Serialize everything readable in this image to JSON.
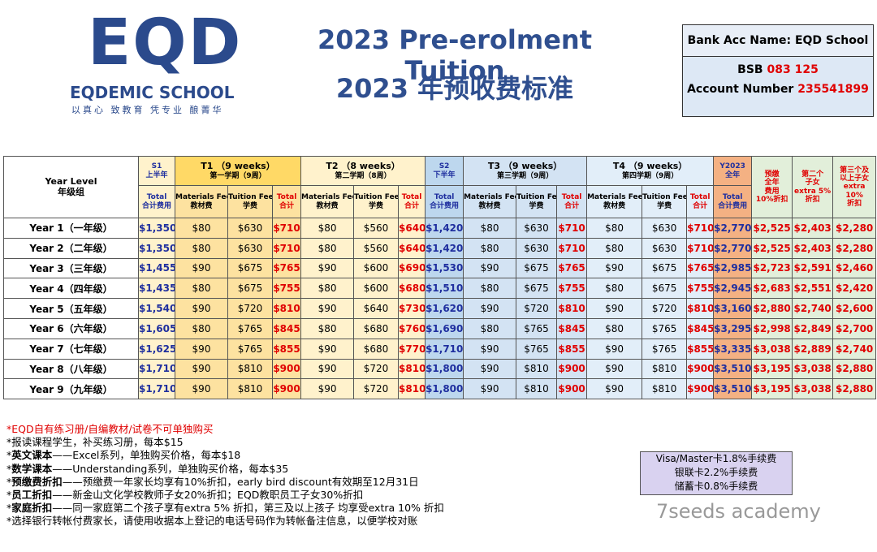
{
  "logo": {
    "mark": "EQD",
    "name": "EQDEMIC SCHOOL",
    "motto": "以真心 致教育 凭专业 酿菁华"
  },
  "title": {
    "en": "2023 Pre-erolment Tuition",
    "zh": "2023 年预收费标准"
  },
  "bank": {
    "name": "Bank Acc Name: EQD School",
    "bsb_label": "BSB",
    "bsb": "083 125",
    "acc_label": "Account Number",
    "acc": "235541899"
  },
  "table": {
    "head1": [
      {
        "lines": [
          "Year Level",
          "年级组"
        ]
      },
      {
        "lines": [
          "S1",
          "上半年"
        ]
      },
      {
        "lines": [
          "T1 （9 weeks）",
          "第一学期（9周）"
        ]
      },
      {
        "lines": [
          "T2 （8 weeks）",
          "第二学期（8周）"
        ]
      },
      {
        "lines": [
          "S2",
          "下半年"
        ]
      },
      {
        "lines": [
          "T3 （9 weeks）",
          "第三学期（9周）"
        ]
      },
      {
        "lines": [
          "T4 （9 weeks）",
          "第四学期（9周）"
        ]
      },
      {
        "lines": [
          "Y2023",
          "全年"
        ]
      },
      {
        "lines": [
          "预缴",
          "全年",
          "费用",
          "10%折扣"
        ]
      },
      {
        "lines": [
          "第二个",
          "子女",
          "extra 5%",
          "折扣"
        ]
      },
      {
        "lines": [
          "第三个及",
          "以上子女",
          "extra",
          "10%",
          "折扣"
        ]
      }
    ],
    "head2": [
      {
        "lines": [
          "Total",
          "合计费用"
        ]
      },
      {
        "lines": [
          "Materials Fee",
          "教材费"
        ]
      },
      {
        "lines": [
          "Tuition Fee",
          "学费"
        ]
      },
      {
        "lines": [
          "Total",
          "合计"
        ]
      },
      {
        "lines": [
          "Materials Fee",
          "教材费"
        ]
      },
      {
        "lines": [
          "Tuition Fee",
          "学费"
        ]
      },
      {
        "lines": [
          "Total",
          "合计"
        ]
      },
      {
        "lines": [
          "Total",
          "合计费用"
        ]
      },
      {
        "lines": [
          "Materials Fee",
          "教材费"
        ]
      },
      {
        "lines": [
          "Tuition Fee",
          "学费"
        ]
      },
      {
        "lines": [
          "Total",
          "合计"
        ]
      },
      {
        "lines": [
          "Materials Fee",
          "教材费"
        ]
      },
      {
        "lines": [
          "Tuition Fee",
          "学费"
        ]
      },
      {
        "lines": [
          "Total",
          "合计"
        ]
      },
      {
        "lines": [
          "Total",
          "合计费用"
        ]
      }
    ],
    "rows": [
      [
        "Year 1（一年级）",
        "$1,350",
        "$80",
        "$630",
        "$710",
        "$80",
        "$560",
        "$640",
        "$1,420",
        "$80",
        "$630",
        "$710",
        "$80",
        "$630",
        "$710",
        "$2,770",
        "$2,525",
        "$2,403",
        "$2,280"
      ],
      [
        "Year 2（二年级）",
        "$1,350",
        "$80",
        "$630",
        "$710",
        "$80",
        "$560",
        "$640",
        "$1,420",
        "$80",
        "$630",
        "$710",
        "$80",
        "$630",
        "$710",
        "$2,770",
        "$2,525",
        "$2,403",
        "$2,280"
      ],
      [
        "Year 3（三年级）",
        "$1,455",
        "$90",
        "$675",
        "$765",
        "$90",
        "$600",
        "$690",
        "$1,530",
        "$90",
        "$675",
        "$765",
        "$90",
        "$675",
        "$765",
        "$2,985",
        "$2,723",
        "$2,591",
        "$2,460"
      ],
      [
        "Year 4（四年级）",
        "$1,435",
        "$80",
        "$675",
        "$755",
        "$80",
        "$600",
        "$680",
        "$1,510",
        "$80",
        "$675",
        "$755",
        "$80",
        "$675",
        "$755",
        "$2,945",
        "$2,683",
        "$2,551",
        "$2,420"
      ],
      [
        "Year 5（五年级）",
        "$1,540",
        "$90",
        "$720",
        "$810",
        "$90",
        "$640",
        "$730",
        "$1,620",
        "$90",
        "$720",
        "$810",
        "$90",
        "$720",
        "$810",
        "$3,160",
        "$2,880",
        "$2,740",
        "$2,600"
      ],
      [
        "Year 6（六年级）",
        "$1,605",
        "$80",
        "$765",
        "$845",
        "$80",
        "$680",
        "$760",
        "$1,690",
        "$80",
        "$765",
        "$845",
        "$80",
        "$765",
        "$845",
        "$3,295",
        "$2,998",
        "$2,849",
        "$2,700"
      ],
      [
        "Year 7（七年级）",
        "$1,625",
        "$90",
        "$765",
        "$855",
        "$90",
        "$680",
        "$770",
        "$1,710",
        "$90",
        "$765",
        "$855",
        "$90",
        "$765",
        "$855",
        "$3,335",
        "$3,038",
        "$2,889",
        "$2,740"
      ],
      [
        "Year 8（八年级）",
        "$1,710",
        "$90",
        "$810",
        "$900",
        "$90",
        "$720",
        "$810",
        "$1,800",
        "$90",
        "$810",
        "$900",
        "$90",
        "$810",
        "$900",
        "$3,510",
        "$3,195",
        "$3,038",
        "$2,880"
      ],
      [
        "Year 9（九年级）",
        "$1,710",
        "$90",
        "$810",
        "$900",
        "$90",
        "$720",
        "$810",
        "$1,800",
        "$90",
        "$810",
        "$900",
        "$90",
        "$810",
        "$900",
        "$3,510",
        "$3,195",
        "$3,038",
        "$2,880"
      ]
    ]
  },
  "notes": [
    {
      "text": "*EQD自有练习册/自编教材/试卷不可单独购买"
    },
    {
      "text": "*报读课程学生，补买练习册，每本$15"
    },
    {
      "prefix": "*",
      "bold": "英文课本",
      "text": "——Excel系列，单独购买价格，每本$18"
    },
    {
      "prefix": "*",
      "bold": "数学课本",
      "text": "——Understanding系列，单独购买价格，每本$35"
    },
    {
      "prefix": "*",
      "bold": "预缴费折扣",
      "text": "——预缴费一年家长均享有10%折扣，early bird discount有效期至12月31日"
    },
    {
      "prefix": "*",
      "bold": "员工折扣",
      "text": "——新金山文化学校教师子女20%折扣；EQD教职员工子女30%折扣"
    },
    {
      "prefix": "*",
      "bold": "家庭折扣",
      "text": "——同一家庭第二个孩子享有extra 5% 折扣，第三及以上孩子 均享受extra 10% 折扣"
    },
    {
      "text": "*选择银行转帐付费家长，请使用收据本上登记的电话号码作为转帐备注信息，以便学校对账"
    }
  ],
  "fees": [
    "Visa/Master卡1.8%手续费",
    "银联卡2.2%手续费",
    "储蓄卡0.8%手续费"
  ],
  "watermark": "7seeds academy"
}
